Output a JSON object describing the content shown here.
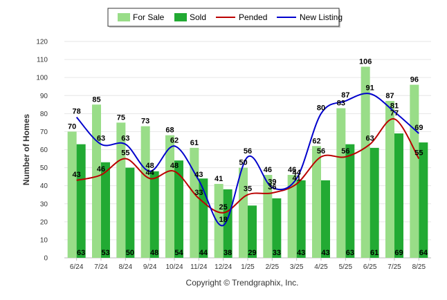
{
  "chart_data": {
    "type": "bar",
    "categories": [
      "6/24",
      "7/24",
      "8/24",
      "9/24",
      "10/24",
      "11/24",
      "12/24",
      "1/25",
      "2/25",
      "3/25",
      "4/25",
      "5/25",
      "6/25",
      "7/25",
      "8/25"
    ],
    "series": [
      {
        "name": "For Sale",
        "kind": "bar",
        "color": "#99dd88",
        "values": [
          70,
          85,
          75,
          73,
          68,
          61,
          41,
          50,
          46,
          46,
          62,
          83,
          106,
          87,
          96
        ]
      },
      {
        "name": "Sold",
        "kind": "bar",
        "color": "#22aa33",
        "values": [
          63,
          53,
          50,
          48,
          54,
          44,
          38,
          29,
          33,
          43,
          43,
          63,
          61,
          69,
          64
        ]
      },
      {
        "name": "Pended",
        "kind": "line",
        "color": "#bb0000",
        "values": [
          43,
          46,
          55,
          44,
          48,
          33,
          25,
          35,
          36,
          41,
          56,
          56,
          63,
          77,
          55
        ]
      },
      {
        "name": "New Listing",
        "kind": "line",
        "color": "#0000cc",
        "values": [
          78,
          63,
          63,
          48,
          62,
          43,
          18,
          56,
          39,
          44,
          80,
          87,
          91,
          81,
          69
        ]
      }
    ],
    "ylabel": "Number of Homes",
    "ylim": [
      0,
      120
    ],
    "yticks": [
      0,
      10,
      20,
      30,
      40,
      50,
      60,
      70,
      80,
      90,
      100,
      110,
      120
    ],
    "grid": true,
    "legend_position": "top-center"
  },
  "footer": {
    "copyright": "Copyright © Trendgraphix, Inc."
  }
}
